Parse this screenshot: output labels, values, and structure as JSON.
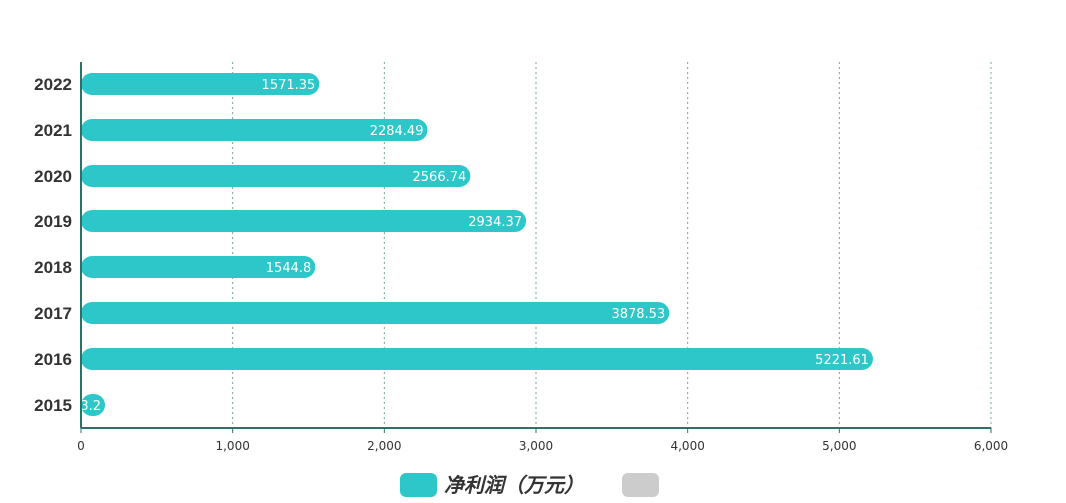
{
  "chart_data": {
    "type": "bar",
    "orientation": "horizontal",
    "categories": [
      "2022",
      "2021",
      "2020",
      "2019",
      "2018",
      "2017",
      "2016",
      "2015"
    ],
    "series": [
      {
        "name": "净利润（万元）",
        "values": [
          1571.35,
          2284.49,
          2566.74,
          2934.37,
          1544.8,
          3878.53,
          5221.61,
          3.2
        ],
        "color": "#2ec7c9"
      }
    ],
    "data_labels": [
      "1571.35",
      "2284.49",
      "2566.74",
      "2934.37",
      "1544.8",
      "3878.53",
      "5221.61",
      "3.2"
    ],
    "x_ticks": [
      "0",
      "1,000",
      "2,000",
      "3,000",
      "4,000",
      "5,000",
      "6,000"
    ],
    "xlim": [
      0,
      6000
    ],
    "grid": "vertical dotted",
    "legend": {
      "placement": "bottom-center",
      "entries": [
        {
          "label": "净利润（万元）",
          "color": "#2ec7c9"
        },
        {
          "label": "",
          "color": "#cccccc"
        }
      ]
    },
    "axis_color": "#2f6f6a",
    "grid_color": "#6fa89f"
  }
}
